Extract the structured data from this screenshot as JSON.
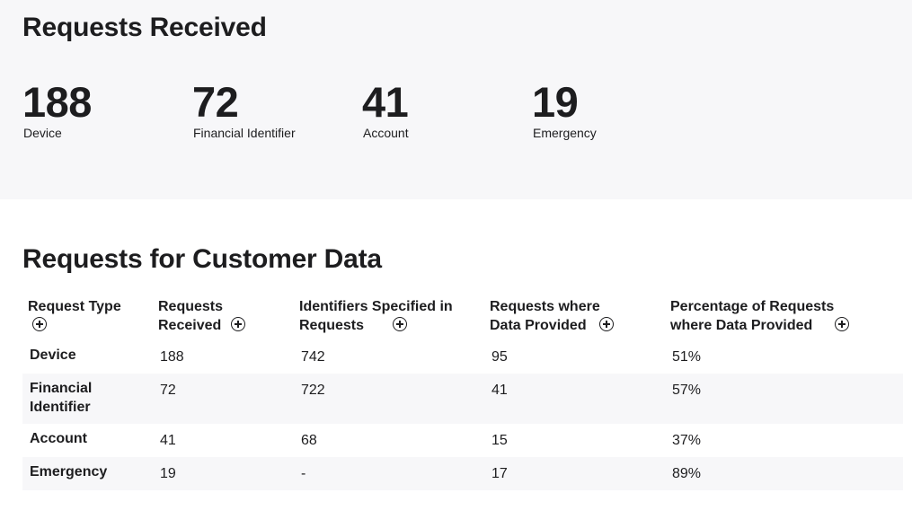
{
  "summary": {
    "title": "Requests Received",
    "stats": [
      {
        "value": "188",
        "label": "Device"
      },
      {
        "value": "72",
        "label": "Financial Identifier"
      },
      {
        "value": "41",
        "label": "Account"
      },
      {
        "value": "19",
        "label": "Emergency"
      }
    ]
  },
  "details": {
    "title": "Requests for Customer Data",
    "columns": [
      "Request Type",
      "Requests Received",
      "Identifiers Specified in Requests",
      "Requests where Data Provided",
      "Percentage of Requests where Data Provided"
    ],
    "rows": [
      [
        "Device",
        "188",
        "742",
        "95",
        "51%"
      ],
      [
        "Financial Identifier",
        "72",
        "722",
        "41",
        "57%"
      ],
      [
        "Account",
        "41",
        "68",
        "15",
        "37%"
      ],
      [
        "Emergency",
        "19",
        "-",
        "17",
        "89%"
      ]
    ]
  },
  "icons": {
    "column_info": "plus-circle-icon"
  },
  "colors": {
    "section_bg": "#f7f7f9",
    "text": "#1d1d1f"
  }
}
